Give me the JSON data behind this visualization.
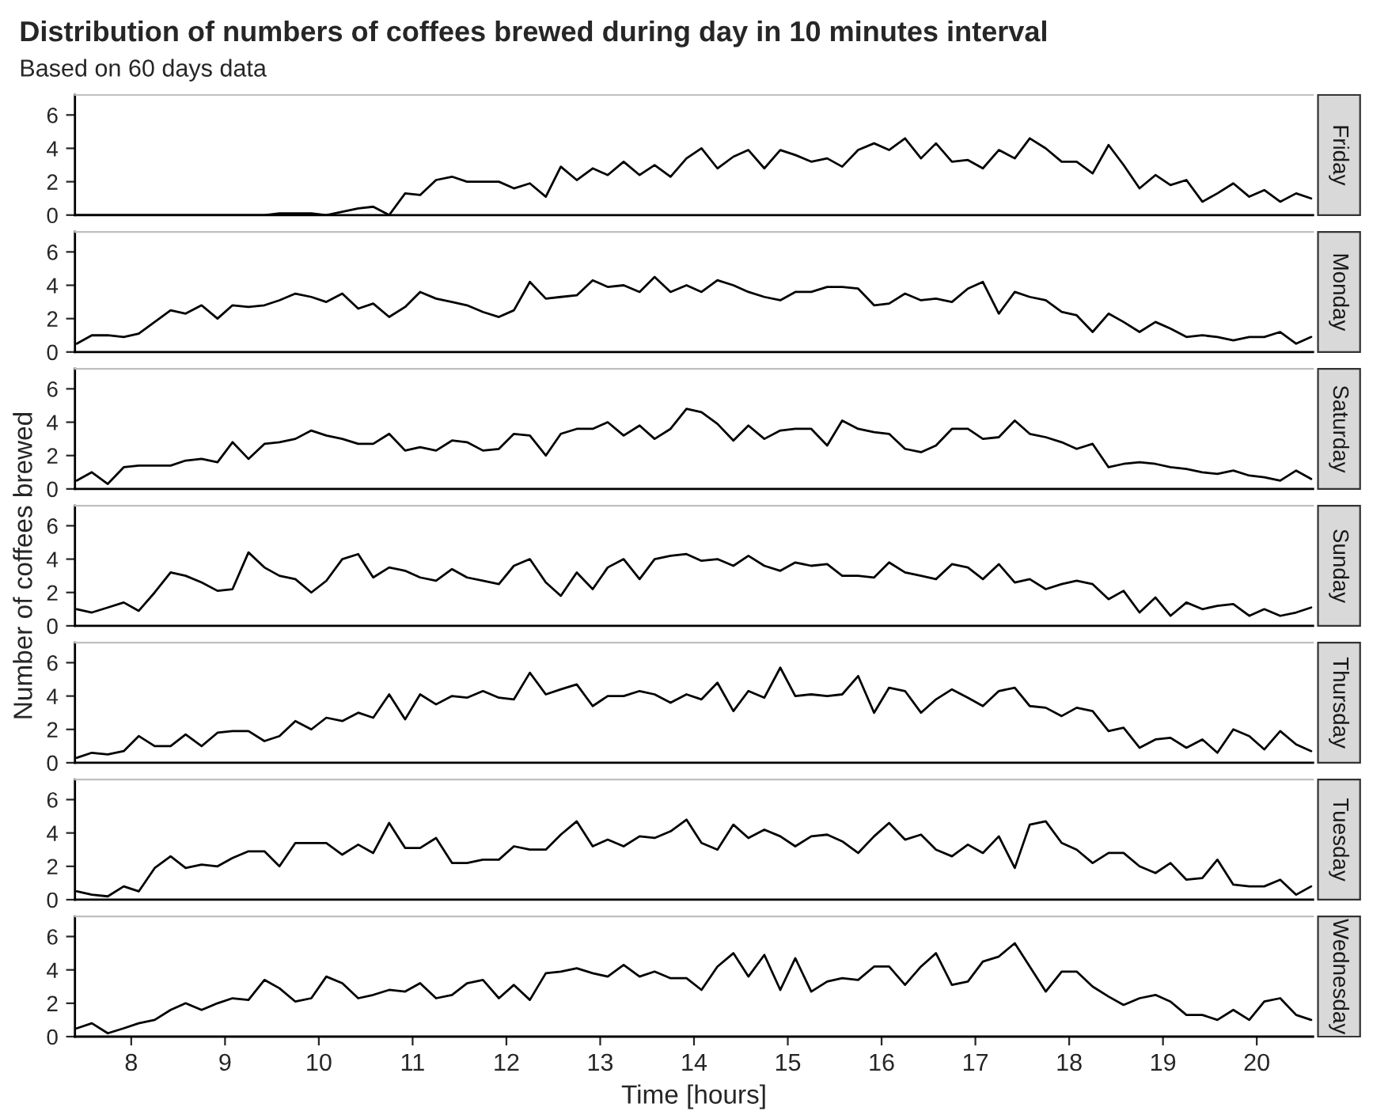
{
  "chart_data": [
    {
      "type": "line",
      "title": "Distribution of numbers of coffees brewed during day in 10 minutes interval",
      "subtitle": "Based on 60 days data",
      "xlim": [
        7.4,
        20.6
      ],
      "ylim": [
        0,
        7.2
      ],
      "yticks": [
        0,
        2,
        4,
        6
      ],
      "tick_labels": "y",
      "grid": false,
      "x": [
        7.42,
        7.58,
        7.75,
        7.92,
        8.08,
        8.25,
        8.42,
        8.58,
        8.75,
        8.92,
        9.08,
        9.25,
        9.42,
        9.58,
        9.75,
        9.92,
        10.08,
        10.25,
        10.42,
        10.58,
        10.75,
        10.92,
        11.08,
        11.25,
        11.42,
        11.58,
        11.75,
        11.92,
        12.08,
        12.25,
        12.42,
        12.58,
        12.75,
        12.92,
        13.08,
        13.25,
        13.42,
        13.58,
        13.75,
        13.92,
        14.08,
        14.25,
        14.42,
        14.58,
        14.75,
        14.92,
        15.08,
        15.25,
        15.42,
        15.58,
        15.75,
        15.92,
        16.08,
        16.25,
        16.42,
        16.58,
        16.75,
        16.92,
        17.08,
        17.25,
        17.42,
        17.58,
        17.75,
        17.92,
        18.08,
        18.25,
        18.42,
        18.58,
        18.75,
        18.92,
        19.08,
        19.25,
        19.42,
        19.58,
        19.75,
        19.92,
        20.08,
        20.25,
        20.42,
        20.58
      ],
      "series": [
        {
          "name": "Friday",
          "color": "#000000",
          "values": [
            0,
            0,
            0,
            0,
            0,
            0,
            0,
            0,
            0,
            0,
            0,
            0,
            0,
            0.1,
            0.1,
            0.1,
            0,
            0.2,
            0.4,
            0.5,
            0,
            1.3,
            1.2,
            2.1,
            2.3,
            2.0,
            2.0,
            2.0,
            1.6,
            1.9,
            1.1,
            2.9,
            2.1,
            2.8,
            2.4,
            3.2,
            2.4,
            3.0,
            2.3,
            3.4,
            4.0,
            2.8,
            3.5,
            3.9,
            2.8,
            3.9,
            3.6,
            3.2,
            3.4,
            2.9,
            3.9,
            4.3,
            3.9,
            4.6,
            3.4,
            4.3,
            3.2,
            3.3,
            2.8,
            3.9,
            3.4,
            4.6,
            4.0,
            3.2,
            3.2,
            2.5,
            4.2,
            3.0,
            1.6,
            2.4,
            1.8,
            2.1,
            0.8,
            1.3,
            1.9,
            1.1,
            1.5,
            0.8,
            1.3,
            1.0
          ]
        }
      ]
    },
    {
      "type": "line",
      "xlim": [
        7.4,
        20.6
      ],
      "ylim": [
        0,
        7.2
      ],
      "yticks": [
        0,
        2,
        4,
        6
      ],
      "tick_labels": "y",
      "grid": false,
      "x": [
        7.42,
        7.58,
        7.75,
        7.92,
        8.08,
        8.25,
        8.42,
        8.58,
        8.75,
        8.92,
        9.08,
        9.25,
        9.42,
        9.58,
        9.75,
        9.92,
        10.08,
        10.25,
        10.42,
        10.58,
        10.75,
        10.92,
        11.08,
        11.25,
        11.42,
        11.58,
        11.75,
        11.92,
        12.08,
        12.25,
        12.42,
        12.58,
        12.75,
        12.92,
        13.08,
        13.25,
        13.42,
        13.58,
        13.75,
        13.92,
        14.08,
        14.25,
        14.42,
        14.58,
        14.75,
        14.92,
        15.08,
        15.25,
        15.42,
        15.58,
        15.75,
        15.92,
        16.08,
        16.25,
        16.42,
        16.58,
        16.75,
        16.92,
        17.08,
        17.25,
        17.42,
        17.58,
        17.75,
        17.92,
        18.08,
        18.25,
        18.42,
        18.58,
        18.75,
        18.92,
        19.08,
        19.25,
        19.42,
        19.58,
        19.75,
        19.92,
        20.08,
        20.25,
        20.42,
        20.58
      ],
      "series": [
        {
          "name": "Monday",
          "color": "#000000",
          "values": [
            0.5,
            1.0,
            1.0,
            0.9,
            1.1,
            1.8,
            2.5,
            2.3,
            2.8,
            2.0,
            2.8,
            2.7,
            2.8,
            3.1,
            3.5,
            3.3,
            3.0,
            3.5,
            2.6,
            2.9,
            2.1,
            2.7,
            3.6,
            3.2,
            3.0,
            2.8,
            2.4,
            2.1,
            2.5,
            4.2,
            3.2,
            3.3,
            3.4,
            4.3,
            3.9,
            4.0,
            3.6,
            4.5,
            3.6,
            4.0,
            3.6,
            4.3,
            4.0,
            3.6,
            3.3,
            3.1,
            3.6,
            3.6,
            3.9,
            3.9,
            3.8,
            2.8,
            2.9,
            3.5,
            3.1,
            3.2,
            3.0,
            3.8,
            4.2,
            2.3,
            3.6,
            3.3,
            3.1,
            2.4,
            2.2,
            1.2,
            2.3,
            1.8,
            1.2,
            1.8,
            1.4,
            0.9,
            1.0,
            0.9,
            0.7,
            0.9,
            0.9,
            1.2,
            0.5,
            0.9
          ]
        }
      ]
    },
    {
      "type": "line",
      "xlim": [
        7.4,
        20.6
      ],
      "ylim": [
        0,
        7.2
      ],
      "yticks": [
        0,
        2,
        4,
        6
      ],
      "tick_labels": "y",
      "grid": false,
      "x": [
        7.42,
        7.58,
        7.75,
        7.92,
        8.08,
        8.25,
        8.42,
        8.58,
        8.75,
        8.92,
        9.08,
        9.25,
        9.42,
        9.58,
        9.75,
        9.92,
        10.08,
        10.25,
        10.42,
        10.58,
        10.75,
        10.92,
        11.08,
        11.25,
        11.42,
        11.58,
        11.75,
        11.92,
        12.08,
        12.25,
        12.42,
        12.58,
        12.75,
        12.92,
        13.08,
        13.25,
        13.42,
        13.58,
        13.75,
        13.92,
        14.08,
        14.25,
        14.42,
        14.58,
        14.75,
        14.92,
        15.08,
        15.25,
        15.42,
        15.58,
        15.75,
        15.92,
        16.08,
        16.25,
        16.42,
        16.58,
        16.75,
        16.92,
        17.08,
        17.25,
        17.42,
        17.58,
        17.75,
        17.92,
        18.08,
        18.25,
        18.42,
        18.58,
        18.75,
        18.92,
        19.08,
        19.25,
        19.42,
        19.58,
        19.75,
        19.92,
        20.08,
        20.25,
        20.42,
        20.58
      ],
      "series": [
        {
          "name": "Saturday",
          "color": "#000000",
          "values": [
            0.5,
            1.0,
            0.3,
            1.3,
            1.4,
            1.4,
            1.4,
            1.7,
            1.8,
            1.6,
            2.8,
            1.8,
            2.7,
            2.8,
            3.0,
            3.5,
            3.2,
            3.0,
            2.7,
            2.7,
            3.3,
            2.3,
            2.5,
            2.3,
            2.9,
            2.8,
            2.3,
            2.4,
            3.3,
            3.2,
            2.0,
            3.3,
            3.6,
            3.6,
            4.0,
            3.2,
            3.8,
            3.0,
            3.6,
            4.8,
            4.6,
            3.9,
            2.9,
            3.8,
            3.0,
            3.5,
            3.6,
            3.6,
            2.6,
            4.1,
            3.6,
            3.4,
            3.3,
            2.4,
            2.2,
            2.6,
            3.6,
            3.6,
            3.0,
            3.1,
            4.1,
            3.3,
            3.1,
            2.8,
            2.4,
            2.7,
            1.3,
            1.5,
            1.6,
            1.5,
            1.3,
            1.2,
            1.0,
            0.9,
            1.1,
            0.8,
            0.7,
            0.5,
            1.1,
            0.6
          ]
        }
      ]
    },
    {
      "type": "line",
      "ylabel": "Number of coffees brewed",
      "xlim": [
        7.4,
        20.6
      ],
      "ylim": [
        0,
        7.2
      ],
      "yticks": [
        0,
        2,
        4,
        6
      ],
      "tick_labels": "y",
      "grid": false,
      "x": [
        7.42,
        7.58,
        7.75,
        7.92,
        8.08,
        8.25,
        8.42,
        8.58,
        8.75,
        8.92,
        9.08,
        9.25,
        9.42,
        9.58,
        9.75,
        9.92,
        10.08,
        10.25,
        10.42,
        10.58,
        10.75,
        10.92,
        11.08,
        11.25,
        11.42,
        11.58,
        11.75,
        11.92,
        12.08,
        12.25,
        12.42,
        12.58,
        12.75,
        12.92,
        13.08,
        13.25,
        13.42,
        13.58,
        13.75,
        13.92,
        14.08,
        14.25,
        14.42,
        14.58,
        14.75,
        14.92,
        15.08,
        15.25,
        15.42,
        15.58,
        15.75,
        15.92,
        16.08,
        16.25,
        16.42,
        16.58,
        16.75,
        16.92,
        17.08,
        17.25,
        17.42,
        17.58,
        17.75,
        17.92,
        18.08,
        18.25,
        18.42,
        18.58,
        18.75,
        18.92,
        19.08,
        19.25,
        19.42,
        19.58,
        19.75,
        19.92,
        20.08,
        20.25,
        20.42,
        20.58
      ],
      "series": [
        {
          "name": "Sunday",
          "color": "#000000",
          "values": [
            1.0,
            0.8,
            1.1,
            1.4,
            0.9,
            2.0,
            3.2,
            3.0,
            2.6,
            2.1,
            2.2,
            4.4,
            3.5,
            3.0,
            2.8,
            2.0,
            2.7,
            4.0,
            4.3,
            2.9,
            3.5,
            3.3,
            2.9,
            2.7,
            3.4,
            2.9,
            2.7,
            2.5,
            3.6,
            4.0,
            2.6,
            1.8,
            3.2,
            2.2,
            3.5,
            4.0,
            2.8,
            4.0,
            4.2,
            4.3,
            3.9,
            4.0,
            3.6,
            4.2,
            3.6,
            3.3,
            3.8,
            3.6,
            3.7,
            3.0,
            3.0,
            2.9,
            3.8,
            3.2,
            3.0,
            2.8,
            3.7,
            3.5,
            2.8,
            3.7,
            2.6,
            2.8,
            2.2,
            2.5,
            2.7,
            2.5,
            1.6,
            2.1,
            0.8,
            1.7,
            0.6,
            1.4,
            1.0,
            1.2,
            1.3,
            0.6,
            1.0,
            0.6,
            0.8,
            1.1
          ]
        }
      ]
    },
    {
      "type": "line",
      "xlim": [
        7.4,
        20.6
      ],
      "ylim": [
        0,
        7.2
      ],
      "yticks": [
        0,
        2,
        4,
        6
      ],
      "tick_labels": "y",
      "grid": false,
      "x": [
        7.42,
        7.58,
        7.75,
        7.92,
        8.08,
        8.25,
        8.42,
        8.58,
        8.75,
        8.92,
        9.08,
        9.25,
        9.42,
        9.58,
        9.75,
        9.92,
        10.08,
        10.25,
        10.42,
        10.58,
        10.75,
        10.92,
        11.08,
        11.25,
        11.42,
        11.58,
        11.75,
        11.92,
        12.08,
        12.25,
        12.42,
        12.58,
        12.75,
        12.92,
        13.08,
        13.25,
        13.42,
        13.58,
        13.75,
        13.92,
        14.08,
        14.25,
        14.42,
        14.58,
        14.75,
        14.92,
        15.08,
        15.25,
        15.42,
        15.58,
        15.75,
        15.92,
        16.08,
        16.25,
        16.42,
        16.58,
        16.75,
        16.92,
        17.08,
        17.25,
        17.42,
        17.58,
        17.75,
        17.92,
        18.08,
        18.25,
        18.42,
        18.58,
        18.75,
        18.92,
        19.08,
        19.25,
        19.42,
        19.58,
        19.75,
        19.92,
        20.08,
        20.25,
        20.42,
        20.58
      ],
      "series": [
        {
          "name": "Thursday",
          "color": "#000000",
          "values": [
            0.3,
            0.6,
            0.5,
            0.7,
            1.6,
            1.0,
            1.0,
            1.7,
            1.0,
            1.8,
            1.9,
            1.9,
            1.3,
            1.6,
            2.5,
            2.0,
            2.7,
            2.5,
            3.0,
            2.7,
            4.1,
            2.6,
            4.1,
            3.5,
            4.0,
            3.9,
            4.3,
            3.9,
            3.8,
            5.4,
            4.1,
            4.4,
            4.7,
            3.4,
            4.0,
            4.0,
            4.3,
            4.1,
            3.6,
            4.1,
            3.8,
            4.8,
            3.1,
            4.3,
            3.9,
            5.7,
            4.0,
            4.1,
            4.0,
            4.1,
            5.2,
            3.0,
            4.5,
            4.3,
            3.0,
            3.8,
            4.4,
            3.9,
            3.4,
            4.3,
            4.5,
            3.4,
            3.3,
            2.8,
            3.3,
            3.1,
            1.9,
            2.1,
            0.9,
            1.4,
            1.5,
            0.9,
            1.4,
            0.6,
            2.0,
            1.6,
            0.8,
            1.9,
            1.1,
            0.7
          ]
        }
      ]
    },
    {
      "type": "line",
      "xlim": [
        7.4,
        20.6
      ],
      "ylim": [
        0,
        7.2
      ],
      "yticks": [
        0,
        2,
        4,
        6
      ],
      "tick_labels": "y",
      "grid": false,
      "x": [
        7.42,
        7.58,
        7.75,
        7.92,
        8.08,
        8.25,
        8.42,
        8.58,
        8.75,
        8.92,
        9.08,
        9.25,
        9.42,
        9.58,
        9.75,
        9.92,
        10.08,
        10.25,
        10.42,
        10.58,
        10.75,
        10.92,
        11.08,
        11.25,
        11.42,
        11.58,
        11.75,
        11.92,
        12.08,
        12.25,
        12.42,
        12.58,
        12.75,
        12.92,
        13.08,
        13.25,
        13.42,
        13.58,
        13.75,
        13.92,
        14.08,
        14.25,
        14.42,
        14.58,
        14.75,
        14.92,
        15.08,
        15.25,
        15.42,
        15.58,
        15.75,
        15.92,
        16.08,
        16.25,
        16.42,
        16.58,
        16.75,
        16.92,
        17.08,
        17.25,
        17.42,
        17.58,
        17.75,
        17.92,
        18.08,
        18.25,
        18.42,
        18.58,
        18.75,
        18.92,
        19.08,
        19.25,
        19.42,
        19.58,
        19.75,
        19.92,
        20.08,
        20.25,
        20.42,
        20.58
      ],
      "series": [
        {
          "name": "Tuesday",
          "color": "#000000",
          "values": [
            0.5,
            0.3,
            0.2,
            0.8,
            0.5,
            1.9,
            2.6,
            1.9,
            2.1,
            2.0,
            2.5,
            2.9,
            2.9,
            2.0,
            3.4,
            3.4,
            3.4,
            2.7,
            3.3,
            2.8,
            4.6,
            3.1,
            3.1,
            3.7,
            2.2,
            2.2,
            2.4,
            2.4,
            3.2,
            3.0,
            3.0,
            3.9,
            4.7,
            3.2,
            3.6,
            3.2,
            3.8,
            3.7,
            4.1,
            4.8,
            3.4,
            3.0,
            4.5,
            3.7,
            4.2,
            3.8,
            3.2,
            3.8,
            3.9,
            3.5,
            2.8,
            3.8,
            4.6,
            3.6,
            3.9,
            3.0,
            2.6,
            3.3,
            2.8,
            3.8,
            1.9,
            4.5,
            4.7,
            3.4,
            3.0,
            2.2,
            2.8,
            2.8,
            2.0,
            1.6,
            2.2,
            1.2,
            1.3,
            2.4,
            0.9,
            0.8,
            0.8,
            1.2,
            0.3,
            0.8
          ]
        }
      ]
    },
    {
      "type": "line",
      "xlabel": "Time [hours]",
      "xlim": [
        7.4,
        20.6
      ],
      "xticks": [
        8,
        9,
        10,
        11,
        12,
        13,
        14,
        15,
        16,
        17,
        18,
        19,
        20
      ],
      "ylim": [
        0,
        7.2
      ],
      "yticks": [
        0,
        2,
        4,
        6
      ],
      "grid": false,
      "x": [
        7.42,
        7.58,
        7.75,
        7.92,
        8.08,
        8.25,
        8.42,
        8.58,
        8.75,
        8.92,
        9.08,
        9.25,
        9.42,
        9.58,
        9.75,
        9.92,
        10.08,
        10.25,
        10.42,
        10.58,
        10.75,
        10.92,
        11.08,
        11.25,
        11.42,
        11.58,
        11.75,
        11.92,
        12.08,
        12.25,
        12.42,
        12.58,
        12.75,
        12.92,
        13.08,
        13.25,
        13.42,
        13.58,
        13.75,
        13.92,
        14.08,
        14.25,
        14.42,
        14.58,
        14.75,
        14.92,
        15.08,
        15.25,
        15.42,
        15.58,
        15.75,
        15.92,
        16.08,
        16.25,
        16.42,
        16.58,
        16.75,
        16.92,
        17.08,
        17.25,
        17.42,
        17.58,
        17.75,
        17.92,
        18.08,
        18.25,
        18.42,
        18.58,
        18.75,
        18.92,
        19.08,
        19.25,
        19.42,
        19.58,
        19.75,
        19.92,
        20.08,
        20.25,
        20.42,
        20.58
      ],
      "series": [
        {
          "name": "Wednesday",
          "color": "#000000",
          "values": [
            0.5,
            0.8,
            0.2,
            0.5,
            0.8,
            1.0,
            1.6,
            2.0,
            1.6,
            2.0,
            2.3,
            2.2,
            3.4,
            2.9,
            2.1,
            2.3,
            3.6,
            3.2,
            2.3,
            2.5,
            2.8,
            2.7,
            3.2,
            2.3,
            2.5,
            3.2,
            3.4,
            2.3,
            3.1,
            2.2,
            3.8,
            3.9,
            4.1,
            3.8,
            3.6,
            4.3,
            3.6,
            3.9,
            3.5,
            3.5,
            2.8,
            4.2,
            5.0,
            3.6,
            4.9,
            2.8,
            4.7,
            2.7,
            3.3,
            3.5,
            3.4,
            4.2,
            4.2,
            3.1,
            4.2,
            5.0,
            3.1,
            3.3,
            4.5,
            4.8,
            5.6,
            4.2,
            2.7,
            3.9,
            3.9,
            3.0,
            2.4,
            1.9,
            2.3,
            2.5,
            2.1,
            1.3,
            1.3,
            1.0,
            1.6,
            1.0,
            2.1,
            2.3,
            1.3,
            1.0
          ]
        }
      ]
    }
  ]
}
